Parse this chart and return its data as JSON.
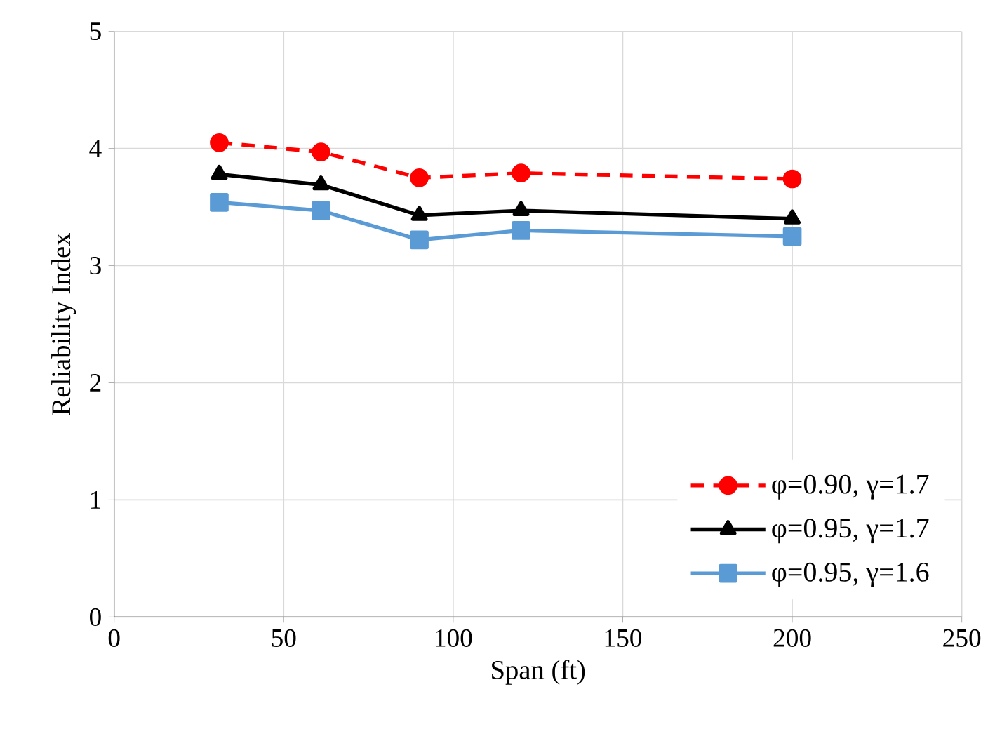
{
  "chart_data": {
    "type": "line",
    "xlabel": "Span (ft)",
    "ylabel": "Reliability Index",
    "xlim": [
      0,
      250
    ],
    "xticks": [
      0,
      50,
      100,
      150,
      200,
      250
    ],
    "ylim": [
      0,
      5
    ],
    "yticks": [
      0,
      1,
      2,
      3,
      4,
      5
    ],
    "grid": true,
    "legend": "bottom right",
    "series": [
      {
        "name": "φ=0.90, γ=1.7",
        "color": "#ff0000",
        "marker": "circle",
        "line_style": "dashed",
        "x": [
          31,
          61,
          90,
          120,
          200
        ],
        "values": [
          4.05,
          3.97,
          3.75,
          3.79,
          3.74
        ]
      },
      {
        "name": "φ=0.95, γ=1.7",
        "color": "#000000",
        "marker": "triangle",
        "line_style": "solid",
        "x": [
          31,
          61,
          90,
          120,
          200
        ],
        "values": [
          3.78,
          3.69,
          3.43,
          3.47,
          3.4
        ]
      },
      {
        "name": "φ=0.95, γ=1.6",
        "color": "#5b9bd5",
        "marker": "square",
        "line_style": "solid",
        "x": [
          31,
          61,
          90,
          120,
          200
        ],
        "values": [
          3.54,
          3.47,
          3.22,
          3.3,
          3.25
        ]
      }
    ]
  }
}
